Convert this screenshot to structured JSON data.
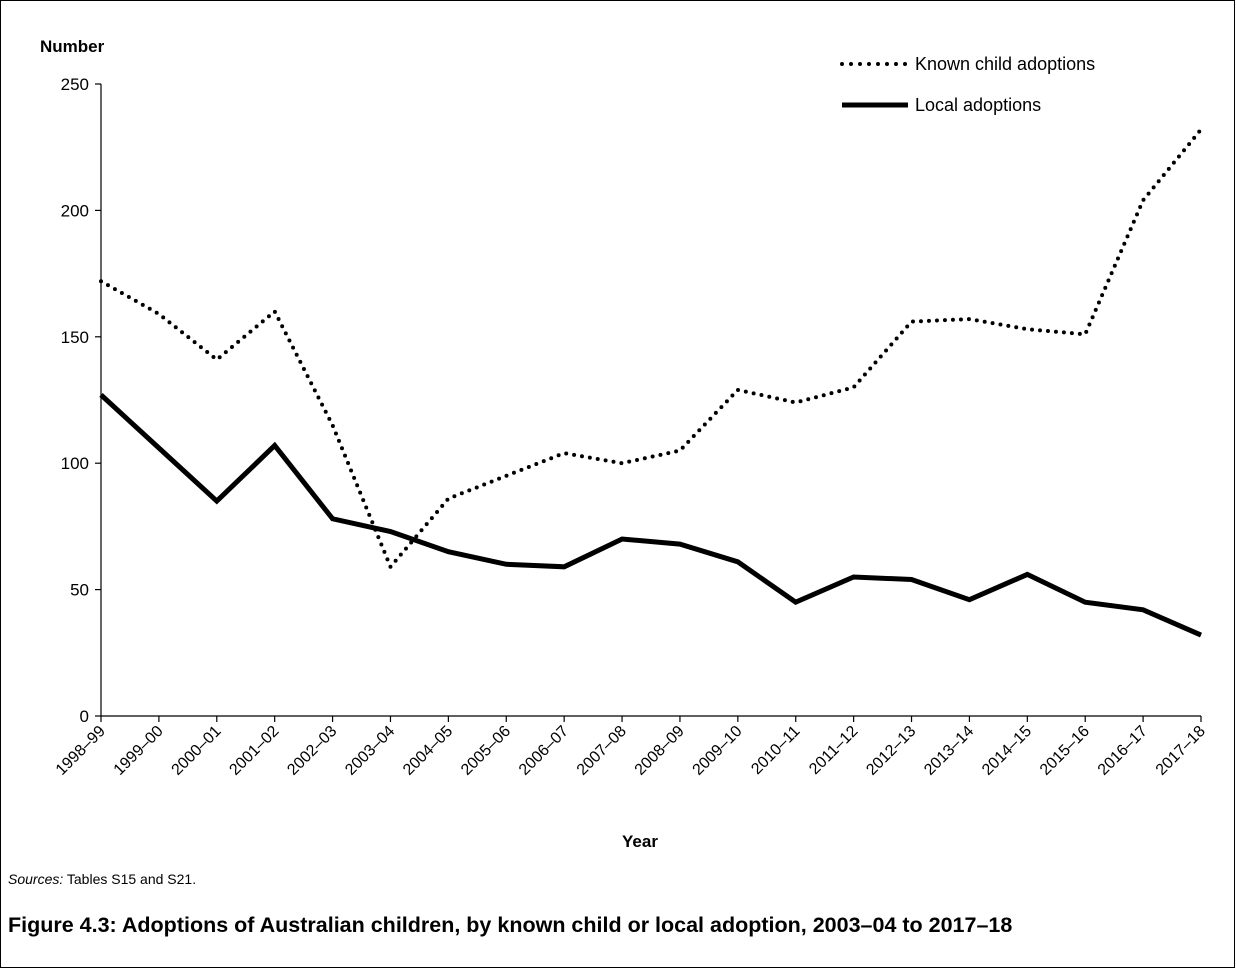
{
  "chart_data": {
    "type": "line",
    "ylabel": "Number",
    "xlabel": "Year",
    "ylim": [
      0,
      250
    ],
    "yticks": [
      0,
      50,
      100,
      150,
      200,
      250
    ],
    "grid": false,
    "legend_position": "top-right",
    "x": [
      "1998–99",
      "1999–00",
      "2000–01",
      "2001–02",
      "2002–03",
      "2003–04",
      "2004–05",
      "2005–06",
      "2006–07",
      "2007–08",
      "2008–09",
      "2009–10",
      "2010–11",
      "2011–12",
      "2012–13",
      "2013–14",
      "2014–15",
      "2015–16",
      "2016–17",
      "2017–18"
    ],
    "series": [
      {
        "name": "Known child adoptions",
        "style": "dotted",
        "values": [
          172,
          159,
          141,
          160,
          115,
          59,
          86,
          95,
          104,
          100,
          105,
          129,
          124,
          130,
          156,
          157,
          153,
          151,
          204,
          232
        ]
      },
      {
        "name": "Local adoptions",
        "style": "solid",
        "values": [
          127,
          106,
          85,
          107,
          78,
          73,
          65,
          60,
          59,
          70,
          68,
          61,
          45,
          55,
          54,
          46,
          56,
          45,
          42,
          32
        ]
      }
    ]
  },
  "sources": {
    "label": "Sources:",
    "text": " Tables S15 and S21."
  },
  "caption": "Figure 4.3: Adoptions of Australian children, by known child or local adoption, 2003–04 to 2017–18",
  "colors": {
    "line": "#000000",
    "background": "#ffffff"
  }
}
